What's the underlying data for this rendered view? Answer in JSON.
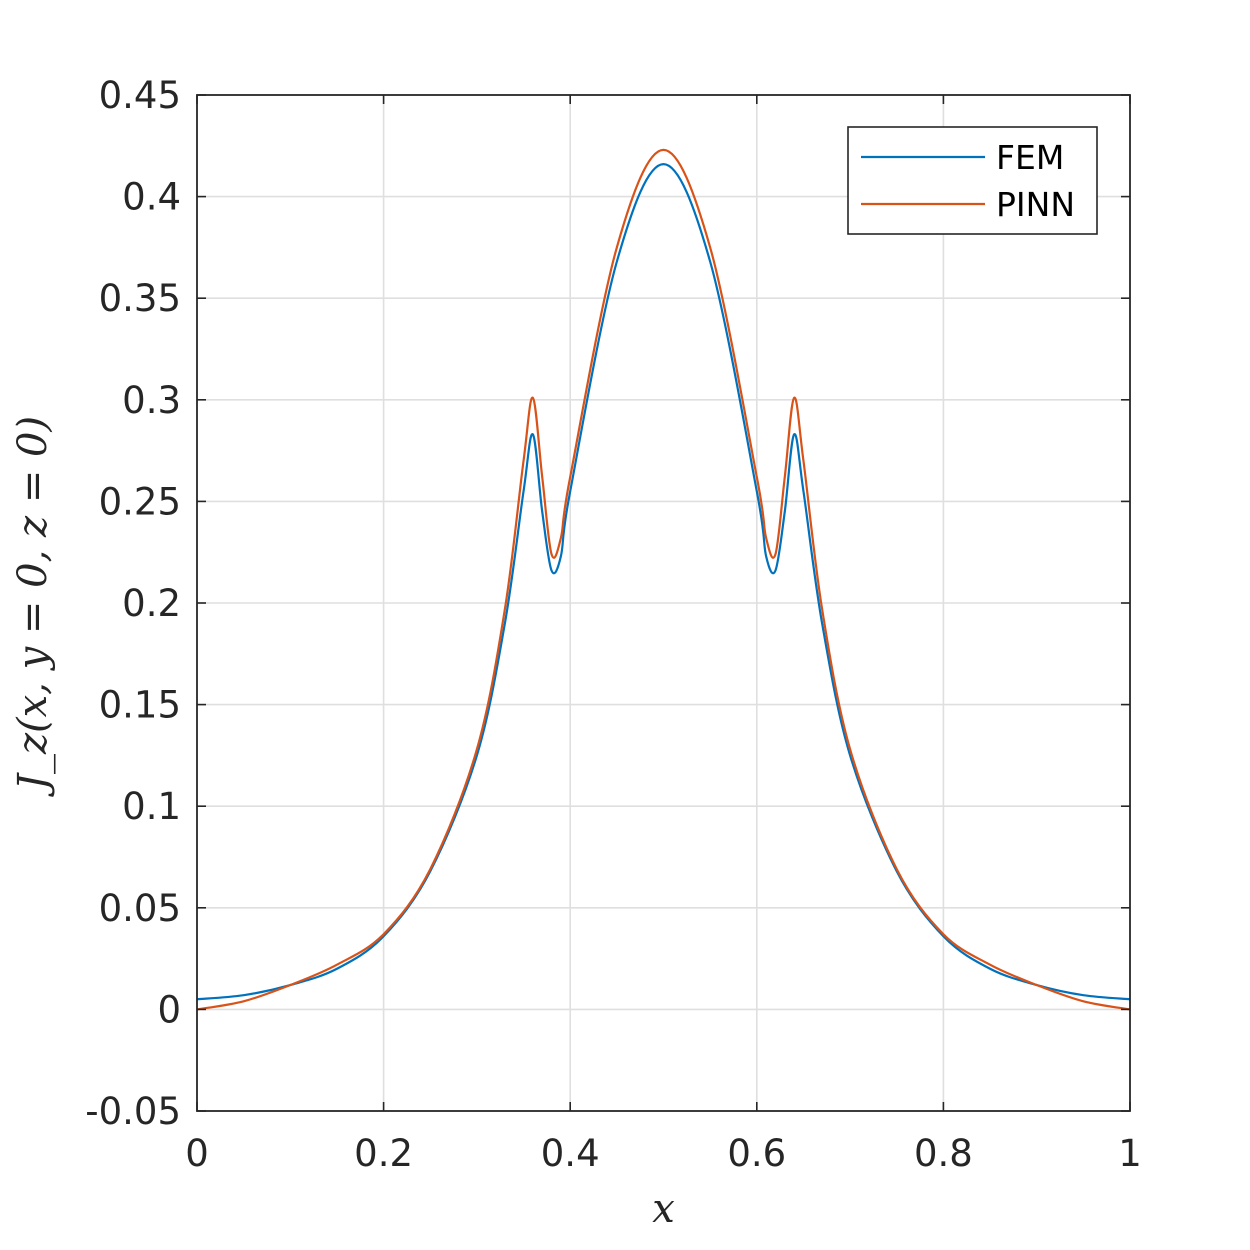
{
  "chart_data": {
    "type": "line",
    "title": "",
    "xlabel": "x",
    "ylabel": "J_z(x, y = 0, z = 0)",
    "xlim": [
      0,
      1
    ],
    "ylim": [
      -0.05,
      0.45
    ],
    "xticks": [
      0,
      0.2,
      0.4,
      0.6,
      0.8,
      1
    ],
    "xtick_labels": [
      "0",
      "0.2",
      "0.4",
      "0.6",
      "0.8",
      "1"
    ],
    "yticks": [
      -0.05,
      0,
      0.05,
      0.1,
      0.15,
      0.2,
      0.25,
      0.3,
      0.35,
      0.4,
      0.45
    ],
    "ytick_labels": [
      "-0.05",
      "0",
      "0.05",
      "0.1",
      "0.15",
      "0.2",
      "0.25",
      "0.3",
      "0.35",
      "0.4",
      "0.45"
    ],
    "grid": true,
    "legend_position": "top-right",
    "series": [
      {
        "name": "FEM",
        "color": "#0072BD",
        "x": [
          0,
          0.05,
          0.1,
          0.15,
          0.2,
          0.25,
          0.3,
          0.33,
          0.35,
          0.36,
          0.37,
          0.38,
          0.39,
          0.4,
          0.45,
          0.5,
          0.55,
          0.6,
          0.61,
          0.62,
          0.63,
          0.64,
          0.65,
          0.67,
          0.7,
          0.75,
          0.8,
          0.85,
          0.9,
          0.95,
          1
        ],
        "y": [
          0.005,
          0.007,
          0.012,
          0.02,
          0.036,
          0.068,
          0.125,
          0.19,
          0.255,
          0.283,
          0.245,
          0.216,
          0.223,
          0.255,
          0.368,
          0.416,
          0.368,
          0.255,
          0.223,
          0.216,
          0.245,
          0.283,
          0.255,
          0.19,
          0.125,
          0.068,
          0.036,
          0.02,
          0.012,
          0.007,
          0.005
        ]
      },
      {
        "name": "PINN",
        "color": "#D95319",
        "x": [
          0,
          0.05,
          0.1,
          0.15,
          0.2,
          0.25,
          0.3,
          0.33,
          0.35,
          0.36,
          0.37,
          0.38,
          0.39,
          0.4,
          0.45,
          0.5,
          0.55,
          0.6,
          0.61,
          0.62,
          0.63,
          0.64,
          0.65,
          0.67,
          0.7,
          0.75,
          0.8,
          0.85,
          0.9,
          0.95,
          1
        ],
        "y": [
          0,
          0.004,
          0.012,
          0.022,
          0.037,
          0.069,
          0.128,
          0.197,
          0.27,
          0.301,
          0.262,
          0.224,
          0.232,
          0.262,
          0.375,
          0.423,
          0.375,
          0.262,
          0.232,
          0.224,
          0.262,
          0.301,
          0.27,
          0.197,
          0.128,
          0.069,
          0.037,
          0.022,
          0.012,
          0.004,
          0
        ]
      }
    ]
  }
}
